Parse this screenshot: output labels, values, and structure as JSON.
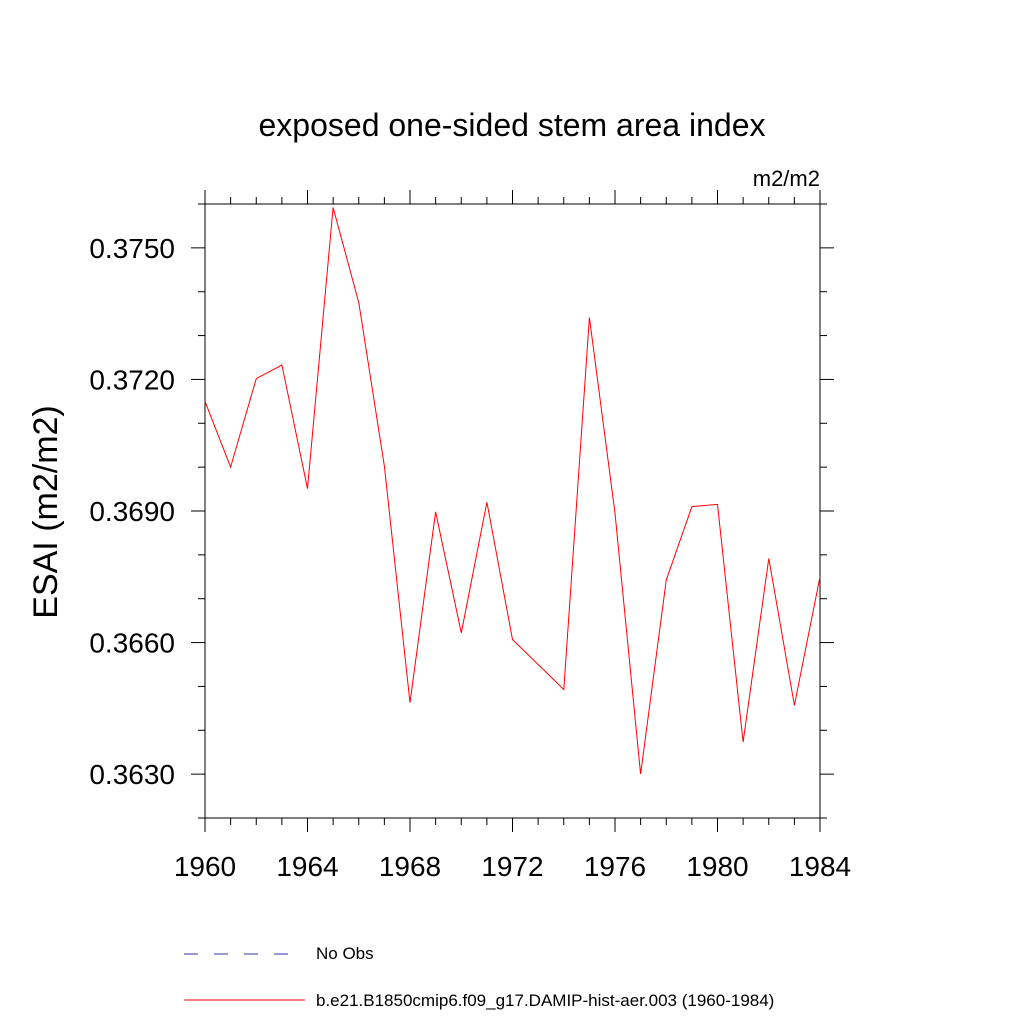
{
  "chart_data": {
    "type": "line",
    "title": "exposed one-sided stem area index",
    "units_label": "m2/m2",
    "ylabel": "ESAI  (m2/m2)",
    "xlabel": "",
    "xlim": [
      1960,
      1984
    ],
    "ylim": [
      0.362,
      0.376
    ],
    "x_ticks": [
      "1960",
      "1964",
      "1968",
      "1972",
      "1976",
      "1980",
      "1984"
    ],
    "y_ticks": [
      "0.3630",
      "0.3660",
      "0.3690",
      "0.3720",
      "0.3750"
    ],
    "grid": false,
    "x": [
      1960,
      1961,
      1962,
      1963,
      1964,
      1965,
      1966,
      1967,
      1968,
      1969,
      1970,
      1971,
      1972,
      1974,
      1975,
      1976,
      1977,
      1978,
      1979,
      1980,
      1981,
      1982,
      1983,
      1984
    ],
    "series": [
      {
        "name": "b.e21.B1850cmip6.f09_g17.DAMIP-hist-aer.003 (1960-1984)",
        "color": "#ff0000",
        "values": [
          0.3715,
          0.37,
          0.37202,
          0.37233,
          0.36951,
          0.37592,
          0.37375,
          0.37002,
          0.36463,
          0.36898,
          0.36622,
          0.3692,
          0.36607,
          0.36493,
          0.37341,
          0.36895,
          0.363,
          0.36743,
          0.3691,
          0.36915,
          0.36373,
          0.36792,
          0.36457,
          0.3675
        ]
      }
    ],
    "legend": {
      "placement": "bottom",
      "entries": [
        {
          "label": "No Obs",
          "color": "#3333aa",
          "style": "dashed"
        },
        {
          "label": "b.e21.B1850cmip6.f09_g17.DAMIP-hist-aer.003 (1960-1984)",
          "color": "#ff0000",
          "style": "solid"
        }
      ]
    }
  }
}
